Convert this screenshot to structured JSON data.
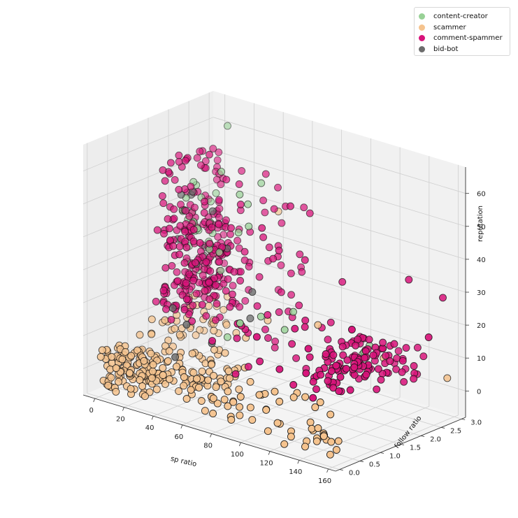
{
  "chart_data": {
    "type": "scatter",
    "projection": "3d",
    "xlabel": "sp ratio",
    "ylabel": "follow ratio",
    "zlabel": "reputation",
    "xlim": [
      -8,
      165
    ],
    "ylim": [
      -0.1,
      3.1
    ],
    "zlim": [
      -8,
      68
    ],
    "x_ticks": [
      "0",
      "20",
      "40",
      "60",
      "80",
      "100",
      "120",
      "140",
      "160"
    ],
    "y_ticks": [
      "0.0",
      "0.5",
      "1.0",
      "1.5",
      "2.0",
      "2.5",
      "3.0"
    ],
    "z_ticks": [
      "0",
      "10",
      "20",
      "30",
      "40",
      "50",
      "60"
    ],
    "grid": true,
    "legend_position": "top-right",
    "series": [
      {
        "name": "content-creator",
        "color": "#98d196",
        "clusters": [
          {
            "x": [
              0,
              3
            ],
            "y": [
              1.9,
              3.0
            ],
            "z": [
              18,
              48
            ],
            "count": 22
          },
          {
            "x": [
              10,
              35
            ],
            "y": [
              1.6,
              2.4
            ],
            "z": [
              22,
              40
            ],
            "count": 6
          },
          {
            "x": [
              22,
              45
            ],
            "y": [
              1.5,
              2.6
            ],
            "z": [
              38,
              60
            ],
            "count": 5
          },
          {
            "x": [
              100,
              110
            ],
            "y": [
              2.6,
              2.9
            ],
            "z": [
              3,
              10
            ],
            "count": 4
          },
          {
            "x": [
              62,
              82
            ],
            "y": [
              1.6,
              2.1
            ],
            "z": [
              10,
              18
            ],
            "count": 3
          }
        ],
        "points": [
          [
            6,
            2.95,
            60
          ],
          [
            40,
            2.0,
            37
          ],
          [
            80,
            0.6,
            22
          ],
          [
            38,
            1.8,
            6
          ]
        ]
      },
      {
        "name": "scammer",
        "color": "#f5c38e",
        "clusters": [
          {
            "x": [
              0,
              30
            ],
            "y": [
              0.0,
              0.8
            ],
            "z": [
              -6,
              6
            ],
            "count": 120
          },
          {
            "x": [
              25,
              65
            ],
            "y": [
              0.2,
              1.4
            ],
            "z": [
              -6,
              5
            ],
            "count": 70
          },
          {
            "x": [
              0,
              15
            ],
            "y": [
              1.0,
              3.0
            ],
            "z": [
              0,
              12
            ],
            "count": 45
          },
          {
            "x": [
              70,
              140
            ],
            "y": [
              0.0,
              0.8
            ],
            "z": [
              -6,
              6
            ],
            "count": 38
          },
          {
            "x": [
              140,
              158
            ],
            "y": [
              0.0,
              0.35
            ],
            "z": [
              -6,
              2
            ],
            "count": 16
          },
          {
            "x": [
              15,
              60
            ],
            "y": [
              0.5,
              2.5
            ],
            "z": [
              -3,
              10
            ],
            "count": 14
          }
        ],
        "points": [
          [
            158,
            2.9,
            4
          ],
          [
            100,
            1.8,
            18
          ],
          [
            60,
            2.0,
            13
          ],
          [
            120,
            2.7,
            6
          ],
          [
            45,
            2.8,
            40
          ]
        ]
      },
      {
        "name": "comment-spammer",
        "color": "#d8137a",
        "clusters": [
          {
            "x": [
              0,
              6
            ],
            "y": [
              1.5,
              3.0
            ],
            "z": [
              10,
              56
            ],
            "count": 120
          },
          {
            "x": [
              5,
              35
            ],
            "y": [
              1.2,
              2.6
            ],
            "z": [
              10,
              40
            ],
            "count": 140
          },
          {
            "x": [
              20,
              70
            ],
            "y": [
              1.7,
              2.9
            ],
            "z": [
              15,
              50
            ],
            "count": 45
          },
          {
            "x": [
              110,
              135
            ],
            "y": [
              1.3,
              2.6
            ],
            "z": [
              2,
              14
            ],
            "count": 95
          },
          {
            "x": [
              120,
              145
            ],
            "y": [
              2.5,
              3.0
            ],
            "z": [
              2,
              13
            ],
            "count": 18
          },
          {
            "x": [
              55,
              120
            ],
            "y": [
              0.6,
              2.4
            ],
            "z": [
              2,
              20
            ],
            "count": 40
          }
        ],
        "points": [
          [
            20,
            2.0,
            58
          ],
          [
            75,
            2.5,
            45
          ],
          [
            80,
            2.2,
            33
          ],
          [
            155,
            2.9,
            28
          ],
          [
            162,
            2.3,
            20
          ],
          [
            140,
            1.2,
            25
          ],
          [
            140,
            2.6,
            33
          ],
          [
            100,
            2.4,
            28
          ],
          [
            130,
            0.6,
            6
          ],
          [
            70,
            2.2,
            48
          ],
          [
            42,
            2.6,
            52
          ]
        ]
      },
      {
        "name": "bid-bot",
        "color": "#6c6c6c",
        "clusters": [
          {
            "x": [
              0,
              3
            ],
            "y": [
              1.8,
              2.6
            ],
            "z": [
              15,
              44
            ],
            "count": 9
          }
        ],
        "points": [
          [
            25,
            1.9,
            42
          ],
          [
            35,
            1.9,
            32
          ],
          [
            55,
            1.8,
            22
          ],
          [
            48,
            2.0,
            12
          ],
          [
            44,
            1.2,
            8
          ],
          [
            35,
            0.9,
            14
          ],
          [
            20,
            1.1,
            16
          ],
          [
            25,
            1.5,
            28
          ],
          [
            30,
            0.8,
            4
          ]
        ]
      }
    ]
  }
}
